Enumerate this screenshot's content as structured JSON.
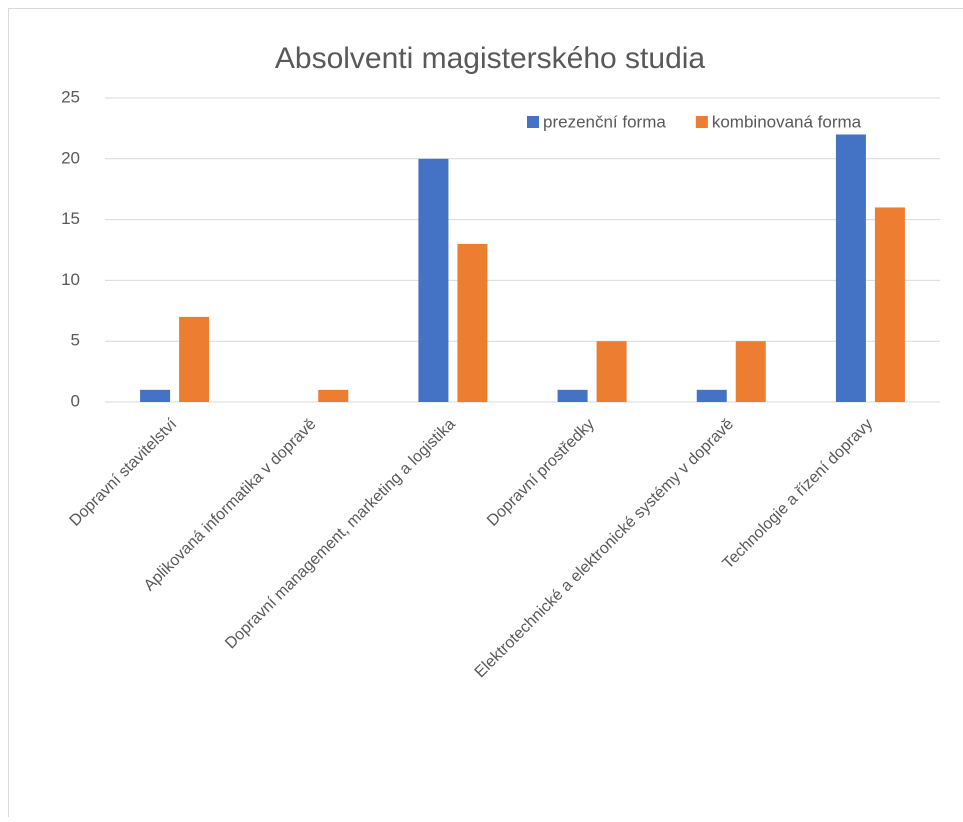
{
  "chart_data": {
    "type": "bar",
    "title": "Absolventi magisterského studia",
    "categories": [
      "Dopravní stavitelství",
      "Aplikovaná informatika v dopravě",
      "Dopravní management, marketing a logistika",
      "Dopravní prostředky",
      "Elektrotechnické a elektronické systémy v dopravě",
      "Technologie a řízení dopravy"
    ],
    "series": [
      {
        "name": "prezenční forma",
        "color": "#4472c4",
        "values": [
          1,
          0,
          20,
          1,
          1,
          22
        ]
      },
      {
        "name": "kombinovaná forma",
        "color": "#ed7d31",
        "values": [
          7,
          1,
          13,
          5,
          5,
          16
        ]
      }
    ],
    "ylim": [
      0,
      25
    ],
    "yticks": [
      0,
      5,
      10,
      15,
      20,
      25
    ],
    "grid": true
  }
}
